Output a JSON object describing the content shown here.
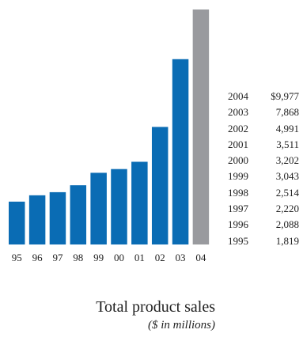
{
  "chart_data": {
    "type": "bar",
    "title": "Total product sales",
    "subtitle": "($ in millions)",
    "categories": [
      "95",
      "96",
      "97",
      "98",
      "99",
      "00",
      "01",
      "02",
      "03",
      "04"
    ],
    "values": [
      1819,
      2088,
      2220,
      2514,
      3043,
      3202,
      3511,
      4991,
      7868,
      9977
    ],
    "ylim": [
      0,
      9977
    ],
    "grid": false,
    "legend": "none",
    "colors": {
      "bar": "#0a6cb4",
      "highlight_bar": "#999a9e"
    },
    "highlight_category": "04",
    "table": {
      "rows": [
        {
          "year": "2004",
          "value": "$9,977"
        },
        {
          "year": "2003",
          "value": "7,868"
        },
        {
          "year": "2002",
          "value": "4,991"
        },
        {
          "year": "2001",
          "value": "3,511"
        },
        {
          "year": "2000",
          "value": "3,202"
        },
        {
          "year": "1999",
          "value": "3,043"
        },
        {
          "year": "1998",
          "value": "2,514"
        },
        {
          "year": "1997",
          "value": "2,220"
        },
        {
          "year": "1996",
          "value": "2,088"
        },
        {
          "year": "1995",
          "value": "1,819"
        }
      ]
    }
  }
}
